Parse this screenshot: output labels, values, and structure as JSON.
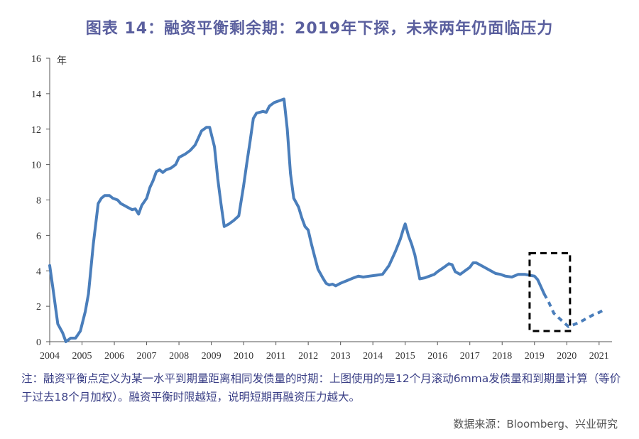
{
  "title": "图表 14：融资平衡剩余期：2019年下探，未来两年仍面临压力",
  "note": "注：融资平衡点定义为某一水平到期量距离相同发债量的时期：上图使用的是12个月滚动6mma发债量和到期量计算（等价于过去18个月加权）。融资平衡时限越短，说明短期再融资压力越大。",
  "source": "数据来源：Bloomberg、兴业研究",
  "colors": {
    "line": "#4a7ebb",
    "title": "#5a5f9e",
    "note": "#3a3f86",
    "box": "#000000"
  },
  "chart_data": {
    "type": "line",
    "ylabel": "年",
    "ylim": [
      0,
      16
    ],
    "xlim": [
      2004,
      2021.4
    ],
    "yticks": [
      "0",
      "2",
      "4",
      "6",
      "8",
      "10",
      "12",
      "14",
      "16"
    ],
    "xticks": [
      "2004",
      "2005",
      "2006",
      "2007",
      "2008",
      "2009",
      "2010",
      "2011",
      "2012",
      "2013",
      "2014",
      "2015",
      "2016",
      "2017",
      "2018",
      "2019",
      "2020",
      "2021"
    ],
    "grid": false,
    "series": [
      {
        "style": "solid",
        "points": [
          [
            2004.0,
            4.3
          ],
          [
            2004.1,
            3.0
          ],
          [
            2004.25,
            1.0
          ],
          [
            2004.4,
            0.5
          ],
          [
            2004.5,
            0.0
          ],
          [
            2004.65,
            0.2
          ],
          [
            2004.8,
            0.2
          ],
          [
            2004.95,
            0.6
          ],
          [
            2005.1,
            1.7
          ],
          [
            2005.2,
            2.7
          ],
          [
            2005.35,
            5.5
          ],
          [
            2005.5,
            7.8
          ],
          [
            2005.6,
            8.1
          ],
          [
            2005.7,
            8.25
          ],
          [
            2005.85,
            8.25
          ],
          [
            2005.95,
            8.1
          ],
          [
            2006.1,
            8.0
          ],
          [
            2006.2,
            7.8
          ],
          [
            2006.3,
            7.7
          ],
          [
            2006.4,
            7.6
          ],
          [
            2006.55,
            7.45
          ],
          [
            2006.65,
            7.5
          ],
          [
            2006.75,
            7.2
          ],
          [
            2006.85,
            7.7
          ],
          [
            2007.0,
            8.1
          ],
          [
            2007.1,
            8.7
          ],
          [
            2007.2,
            9.1
          ],
          [
            2007.3,
            9.6
          ],
          [
            2007.4,
            9.7
          ],
          [
            2007.5,
            9.55
          ],
          [
            2007.6,
            9.7
          ],
          [
            2007.75,
            9.8
          ],
          [
            2007.9,
            10.0
          ],
          [
            2008.0,
            10.4
          ],
          [
            2008.2,
            10.6
          ],
          [
            2008.35,
            10.8
          ],
          [
            2008.5,
            11.1
          ],
          [
            2008.6,
            11.5
          ],
          [
            2008.7,
            11.9
          ],
          [
            2008.85,
            12.1
          ],
          [
            2008.95,
            12.1
          ],
          [
            2009.1,
            11.0
          ],
          [
            2009.2,
            9.2
          ],
          [
            2009.3,
            7.8
          ],
          [
            2009.4,
            6.5
          ],
          [
            2009.55,
            6.65
          ],
          [
            2009.7,
            6.85
          ],
          [
            2009.85,
            7.1
          ],
          [
            2010.0,
            8.8
          ],
          [
            2010.1,
            10.1
          ],
          [
            2010.2,
            11.3
          ],
          [
            2010.3,
            12.6
          ],
          [
            2010.4,
            12.9
          ],
          [
            2010.5,
            12.95
          ],
          [
            2010.6,
            13.0
          ],
          [
            2010.7,
            12.95
          ],
          [
            2010.8,
            13.3
          ],
          [
            2010.95,
            13.5
          ],
          [
            2011.1,
            13.6
          ],
          [
            2011.25,
            13.7
          ],
          [
            2011.35,
            12.0
          ],
          [
            2011.45,
            9.5
          ],
          [
            2011.55,
            8.1
          ],
          [
            2011.7,
            7.6
          ],
          [
            2011.8,
            7.0
          ],
          [
            2011.9,
            6.5
          ],
          [
            2012.0,
            6.3
          ],
          [
            2012.1,
            5.5
          ],
          [
            2012.2,
            4.8
          ],
          [
            2012.3,
            4.1
          ],
          [
            2012.45,
            3.6
          ],
          [
            2012.55,
            3.3
          ],
          [
            2012.65,
            3.2
          ],
          [
            2012.75,
            3.25
          ],
          [
            2012.85,
            3.15
          ],
          [
            2013.0,
            3.3
          ],
          [
            2013.2,
            3.45
          ],
          [
            2013.4,
            3.6
          ],
          [
            2013.55,
            3.7
          ],
          [
            2013.7,
            3.65
          ],
          [
            2013.9,
            3.7
          ],
          [
            2014.1,
            3.75
          ],
          [
            2014.3,
            3.8
          ],
          [
            2014.5,
            4.3
          ],
          [
            2014.7,
            5.1
          ],
          [
            2014.85,
            5.8
          ],
          [
            2014.95,
            6.4
          ],
          [
            2015.0,
            6.65
          ],
          [
            2015.1,
            6.0
          ],
          [
            2015.2,
            5.5
          ],
          [
            2015.3,
            4.9
          ],
          [
            2015.45,
            3.55
          ],
          [
            2015.6,
            3.6
          ],
          [
            2015.75,
            3.7
          ],
          [
            2015.9,
            3.8
          ],
          [
            2016.0,
            3.95
          ],
          [
            2016.2,
            4.2
          ],
          [
            2016.35,
            4.4
          ],
          [
            2016.45,
            4.35
          ],
          [
            2016.55,
            3.95
          ],
          [
            2016.7,
            3.8
          ],
          [
            2016.85,
            4.0
          ],
          [
            2017.0,
            4.2
          ],
          [
            2017.1,
            4.45
          ],
          [
            2017.2,
            4.45
          ],
          [
            2017.35,
            4.3
          ],
          [
            2017.5,
            4.15
          ],
          [
            2017.65,
            4.0
          ],
          [
            2017.8,
            3.85
          ],
          [
            2017.95,
            3.8
          ],
          [
            2018.1,
            3.7
          ],
          [
            2018.3,
            3.65
          ],
          [
            2018.5,
            3.8
          ],
          [
            2018.7,
            3.8
          ],
          [
            2018.85,
            3.75
          ],
          [
            2019.0,
            3.7
          ],
          [
            2019.1,
            3.5
          ],
          [
            2019.2,
            3.1
          ],
          [
            2019.3,
            2.7
          ]
        ]
      },
      {
        "style": "dashed",
        "points": [
          [
            2019.3,
            2.7
          ],
          [
            2019.45,
            2.2
          ],
          [
            2019.6,
            1.6
          ],
          [
            2019.75,
            1.35
          ],
          [
            2019.9,
            1.1
          ],
          [
            2020.05,
            0.85
          ],
          [
            2020.2,
            0.95
          ],
          [
            2020.4,
            1.1
          ],
          [
            2020.6,
            1.3
          ],
          [
            2020.8,
            1.5
          ],
          [
            2021.0,
            1.65
          ],
          [
            2021.2,
            1.85
          ]
        ]
      }
    ],
    "annotations": [
      {
        "type": "dashed-box",
        "x": [
          2018.85,
          2020.1
        ],
        "y": [
          0.6,
          5.0
        ]
      }
    ]
  }
}
